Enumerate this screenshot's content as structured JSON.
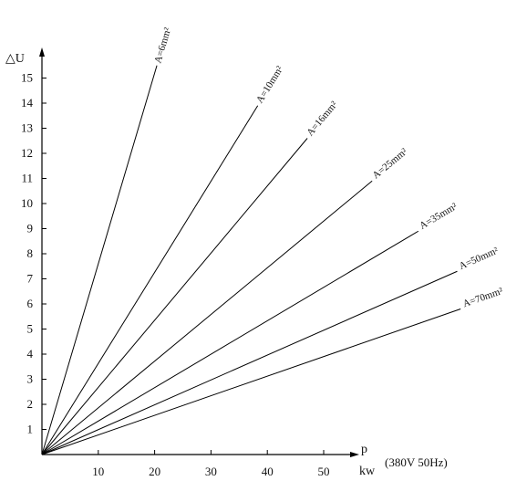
{
  "chart_data": {
    "type": "line",
    "ylabel": "△U",
    "xlabel_top": "p",
    "xlabel_bottom": "kw",
    "note": "(380V 50Hz)",
    "xlim": [
      0,
      55
    ],
    "ylim": [
      0,
      16
    ],
    "xticks": [
      10,
      20,
      30,
      40,
      50
    ],
    "yticks": [
      1,
      2,
      3,
      4,
      5,
      6,
      7,
      8,
      9,
      10,
      11,
      12,
      13,
      14,
      15
    ],
    "grid": false,
    "series": [
      {
        "name": "A=6mm²",
        "x": [
          0,
          20.4
        ],
        "y": [
          0,
          15.5
        ]
      },
      {
        "name": "A=10mm²",
        "x": [
          0,
          38.3
        ],
        "y": [
          0,
          13.9
        ]
      },
      {
        "name": "A=16mm²",
        "x": [
          0,
          47.1
        ],
        "y": [
          0,
          12.6
        ]
      },
      {
        "name": "A=25mm²",
        "x": [
          0,
          58.6
        ],
        "y": [
          0,
          10.9
        ]
      },
      {
        "name": "A=35mm²",
        "x": [
          0,
          66.8
        ],
        "y": [
          0,
          8.9
        ]
      },
      {
        "name": "A=50mm²",
        "x": [
          0,
          73.7
        ],
        "y": [
          0,
          7.3
        ]
      },
      {
        "name": "A=70mm²",
        "x": [
          0,
          74.3
        ],
        "y": [
          0,
          5.8
        ]
      }
    ]
  }
}
